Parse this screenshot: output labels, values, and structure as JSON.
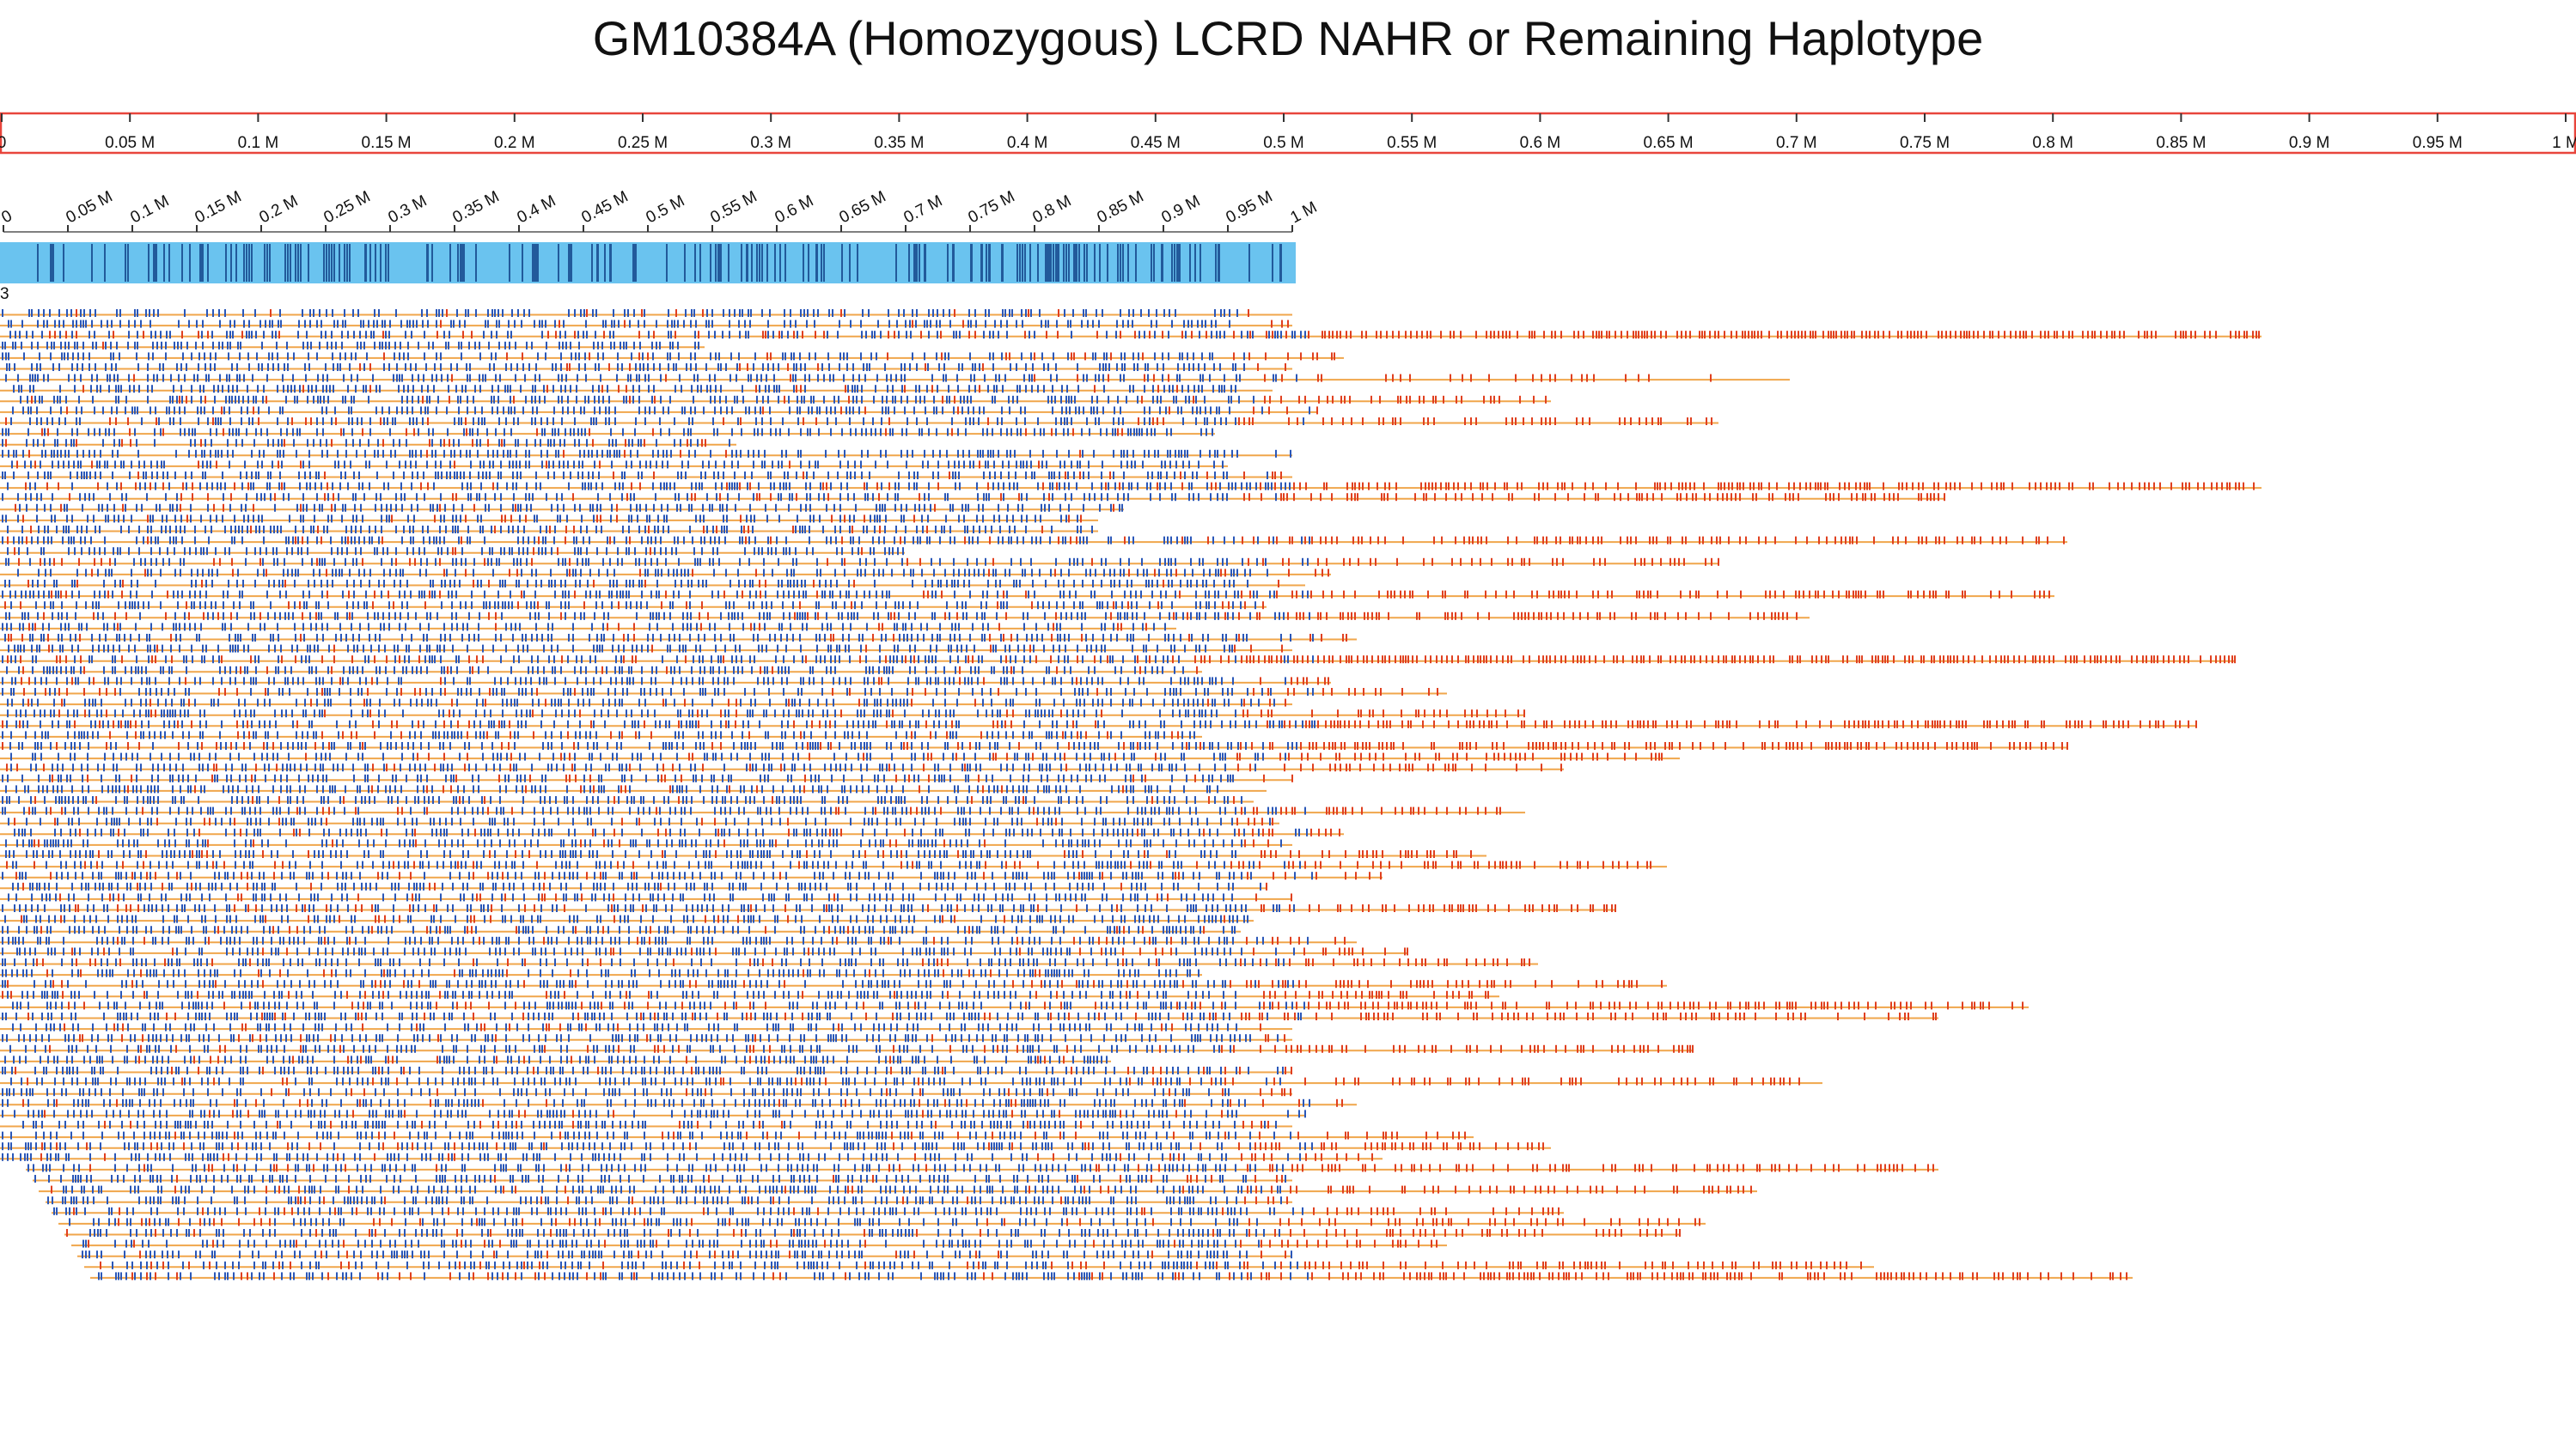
{
  "title": "GM10384A (Homozygous) LCRD NAHR or Remaining Haplotype",
  "colors": {
    "background": "#ffffff",
    "ruler_border": "#e8453c",
    "ref_bar_fill": "#6ac3ef",
    "ref_bar_stripe": "#1b4f91",
    "read_line": "#f0a64b",
    "read_mark_blue": "#2a57b8",
    "read_mark_red": "#e0401f",
    "text": "#111111"
  },
  "chart_data": {
    "type": "read-alignment",
    "top_ruler": {
      "ticks": [
        "0",
        "0.05 M",
        "0.1 M",
        "0.15 M",
        "0.2 M",
        "0.25 M",
        "0.3 M",
        "0.35 M",
        "0.4 M",
        "0.45 M",
        "0.5 M",
        "0.55 M",
        "0.6 M",
        "0.65 M",
        "0.7 M",
        "0.75 M",
        "0.8 M",
        "0.85 M",
        "0.9 M",
        "0.95 M",
        "1 M"
      ],
      "range": [
        0,
        1000000
      ]
    },
    "reference_ruler": {
      "ticks": [
        "0",
        "0.05 M",
        "0.1 M",
        "0.15 M",
        "0.2 M",
        "0.25 M",
        "0.3 M",
        "0.35 M",
        "0.4 M",
        "0.45 M",
        "0.5 M",
        "0.55 M",
        "0.6 M",
        "0.65 M",
        "0.7 M",
        "0.75 M",
        "0.8 M",
        "0.85 M",
        "0.9 M",
        "0.95 M",
        "1 M"
      ],
      "range": [
        0,
        1000000
      ],
      "label": "3"
    },
    "reads": {
      "count": 90,
      "unit": "M",
      "starts": [
        0,
        0,
        0,
        0,
        0,
        0,
        0,
        0,
        0,
        0,
        0,
        0,
        0,
        0,
        0,
        0,
        0,
        0,
        0,
        0,
        0,
        0,
        0,
        0,
        0,
        0,
        0,
        0,
        0,
        0,
        0,
        0,
        0,
        0,
        0,
        0,
        0,
        0,
        0,
        0,
        0,
        0,
        0,
        0,
        0,
        0,
        0,
        0,
        0,
        0,
        0,
        0,
        0,
        0,
        0,
        0,
        0,
        0,
        0,
        0,
        0,
        0,
        0,
        0,
        0,
        0,
        0,
        0,
        0,
        0,
        0,
        0,
        0,
        0,
        0,
        0,
        0,
        0,
        0,
        0.02,
        0.025,
        0.03,
        0.035,
        0.04,
        0.045,
        0.05,
        0.055,
        0.06,
        0.065,
        0.07
      ],
      "ends": [
        1.0,
        1.0,
        1.75,
        0.545,
        1.04,
        1.0,
        1.385,
        0.985,
        1.2,
        1.02,
        1.33,
        0.94,
        0.57,
        1.0,
        0.95,
        1.0,
        1.75,
        1.505,
        0.87,
        0.85,
        0.85,
        1.6,
        0.7,
        1.33,
        1.03,
        1.01,
        1.59,
        0.98,
        1.4,
        0.91,
        1.05,
        1.0,
        1.73,
        0.93,
        1.03,
        1.12,
        1.0,
        1.18,
        1.7,
        0.93,
        1.6,
        1.3,
        1.21,
        1.0,
        0.98,
        0.97,
        1.18,
        0.99,
        1.04,
        1.0,
        1.15,
        1.29,
        1.07,
        0.98,
        1.0,
        1.25,
        0.97,
        0.96,
        1.05,
        1.09,
        1.19,
        0.93,
        1.29,
        1.16,
        1.57,
        1.5,
        1.0,
        1.0,
        1.31,
        0.86,
        1.0,
        1.41,
        1.0,
        1.05,
        1.01,
        1.0,
        1.14,
        1.2,
        1.07,
        1.5,
        1.0,
        1.36,
        1.0,
        1.21,
        1.32,
        1.3,
        1.12,
        1.0,
        1.45,
        1.65
      ],
      "red_density": [
        0.2,
        0.1,
        0.7,
        0.1,
        0.35,
        0.2,
        0.25,
        0.2,
        0.35,
        0.2,
        0.4,
        0.35,
        0.5,
        0.2,
        0.25,
        0.2,
        0.6,
        0.45,
        0.4,
        0.3,
        0.3,
        0.5,
        0.3,
        0.4,
        0.3,
        0.25,
        0.45,
        0.35,
        0.5,
        0.4,
        0.35,
        0.3,
        0.75,
        0.35,
        0.3,
        0.4,
        0.3,
        0.35,
        0.6,
        0.5,
        0.55,
        0.45,
        0.4,
        0.35,
        0.35,
        0.3,
        0.45,
        0.3,
        0.4,
        0.3,
        0.35,
        0.45,
        0.4,
        0.3,
        0.3,
        0.5,
        0.4,
        0.35,
        0.35,
        0.35,
        0.45,
        0.35,
        0.45,
        0.4,
        0.5,
        0.45,
        0.3,
        0.3,
        0.45,
        0.4,
        0.3,
        0.4,
        0.3,
        0.35,
        0.3,
        0.3,
        0.35,
        0.35,
        0.35,
        0.4,
        0.3,
        0.4,
        0.3,
        0.35,
        0.4,
        0.35,
        0.35,
        0.3,
        0.45,
        0.55
      ]
    }
  }
}
